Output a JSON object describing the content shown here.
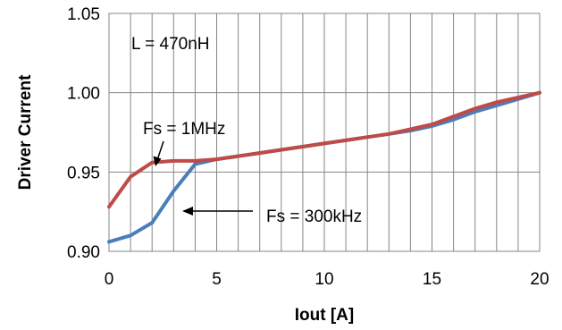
{
  "chart_data": {
    "type": "line",
    "xlabel": "Iout [A]",
    "ylabel": "Driver Current",
    "xlim": [
      0,
      20
    ],
    "ylim": [
      0.9,
      1.05
    ],
    "x_ticks": [
      0,
      5,
      10,
      15,
      20
    ],
    "x_tick_labels": [
      "0",
      "5",
      "10",
      "15",
      "20"
    ],
    "y_ticks": [
      0.9,
      0.95,
      1.0,
      1.05
    ],
    "y_tick_labels": [
      "0.90",
      "0.95",
      "1.00",
      "1.05"
    ],
    "grid": {
      "vertical": true,
      "horizontal": true,
      "x_minor_step": 1
    },
    "series": [
      {
        "name": "Fs = 300kHz",
        "color": "#4a7ebb",
        "x": [
          0,
          1,
          2,
          3,
          4,
          5,
          6,
          7,
          8,
          9,
          10,
          11,
          12,
          13,
          14,
          15,
          16,
          17,
          18,
          19,
          20
        ],
        "y": [
          0.906,
          0.91,
          0.918,
          0.938,
          0.955,
          0.958,
          0.96,
          0.962,
          0.964,
          0.966,
          0.968,
          0.97,
          0.972,
          0.974,
          0.976,
          0.979,
          0.983,
          0.988,
          0.992,
          0.996,
          1.0
        ]
      },
      {
        "name": "Fs = 1MHz",
        "color": "#be4b48",
        "x": [
          0,
          1,
          2,
          3,
          4,
          5,
          6,
          7,
          8,
          9,
          10,
          11,
          12,
          13,
          14,
          15,
          16,
          17,
          18,
          19,
          20
        ],
        "y": [
          0.928,
          0.947,
          0.956,
          0.957,
          0.957,
          0.958,
          0.96,
          0.962,
          0.964,
          0.966,
          0.968,
          0.97,
          0.972,
          0.974,
          0.977,
          0.98,
          0.985,
          0.99,
          0.994,
          0.997,
          1.0
        ]
      }
    ],
    "annotations": {
      "inductance": "L = 470nH",
      "fs_1mhz": "Fs = 1MHz",
      "fs_300khz": "Fs = 300kHz"
    }
  }
}
